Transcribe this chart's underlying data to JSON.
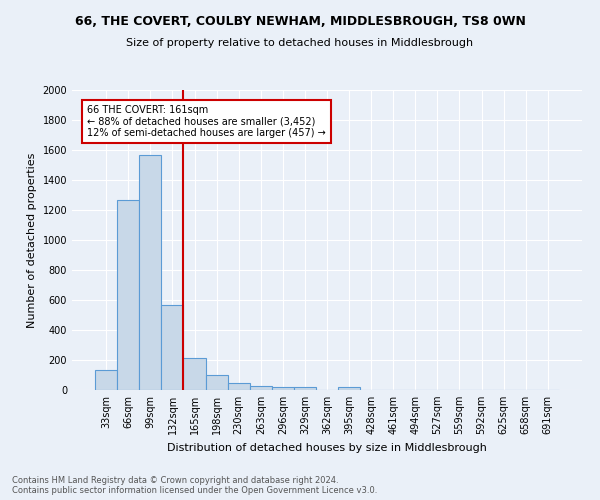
{
  "title1": "66, THE COVERT, COULBY NEWHAM, MIDDLESBROUGH, TS8 0WN",
  "title2": "Size of property relative to detached houses in Middlesbrough",
  "xlabel": "Distribution of detached houses by size in Middlesbrough",
  "ylabel": "Number of detached properties",
  "bin_labels": [
    "33sqm",
    "66sqm",
    "99sqm",
    "132sqm",
    "165sqm",
    "198sqm",
    "230sqm",
    "263sqm",
    "296sqm",
    "329sqm",
    "362sqm",
    "395sqm",
    "428sqm",
    "461sqm",
    "494sqm",
    "527sqm",
    "559sqm",
    "592sqm",
    "625sqm",
    "658sqm",
    "691sqm"
  ],
  "bar_values": [
    135,
    1265,
    1565,
    570,
    215,
    100,
    50,
    25,
    20,
    20,
    0,
    20,
    0,
    0,
    0,
    0,
    0,
    0,
    0,
    0,
    0
  ],
  "bar_color": "#c8d8e8",
  "bar_edge_color": "#5b9bd5",
  "vline_x_idx": 4,
  "vline_color": "#cc0000",
  "annotation_text": "66 THE COVERT: 161sqm\n← 88% of detached houses are smaller (3,452)\n12% of semi-detached houses are larger (457) →",
  "annotation_box_color": "white",
  "annotation_border_color": "#cc0000",
  "ylim": [
    0,
    2000
  ],
  "yticks": [
    0,
    200,
    400,
    600,
    800,
    1000,
    1200,
    1400,
    1600,
    1800,
    2000
  ],
  "footer_text": "Contains HM Land Registry data © Crown copyright and database right 2024.\nContains public sector information licensed under the Open Government Licence v3.0.",
  "bg_color": "#eaf0f8",
  "grid_color": "white",
  "title_fontsize": 9,
  "subtitle_fontsize": 8,
  "ylabel_fontsize": 8,
  "xlabel_fontsize": 8,
  "tick_fontsize": 7,
  "footer_fontsize": 6
}
